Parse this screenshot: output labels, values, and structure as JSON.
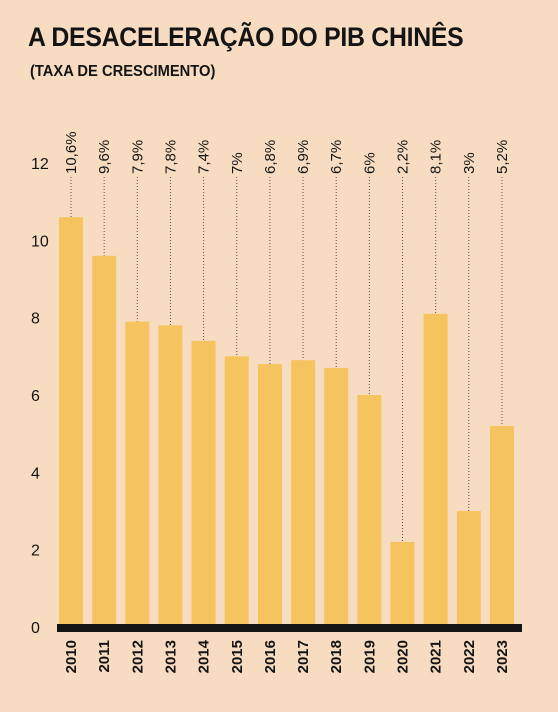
{
  "chart_data": {
    "type": "bar",
    "title": "A DESACELERAÇÃO DO PIB CHINÊS",
    "subtitle": "(TAXA DE CRESCIMENTO)",
    "categories": [
      "2010",
      "2011",
      "2012",
      "2013",
      "2014",
      "2015",
      "2016",
      "2017",
      "2018",
      "2019",
      "2020",
      "2021",
      "2022",
      "2023"
    ],
    "values": [
      10.6,
      9.6,
      7.9,
      7.8,
      7.4,
      7.0,
      6.8,
      6.9,
      6.7,
      6.0,
      2.2,
      8.1,
      3.0,
      5.2
    ],
    "data_labels": [
      "10,6%",
      "9,6%",
      "7,9%",
      "7,8%",
      "7,4%",
      "7%",
      "6,8%",
      "6,9%",
      "6,7%",
      "6%",
      "2,2%",
      "8,1%",
      "3%",
      "5,2%"
    ],
    "yticks": [
      0,
      2,
      4,
      6,
      8,
      10,
      12
    ],
    "ylim": [
      0,
      12
    ],
    "grid": false,
    "colors": {
      "bar": "#f6c45f",
      "background": "#f7dcc2",
      "baseline": "#141414",
      "leader": "#555555"
    }
  }
}
